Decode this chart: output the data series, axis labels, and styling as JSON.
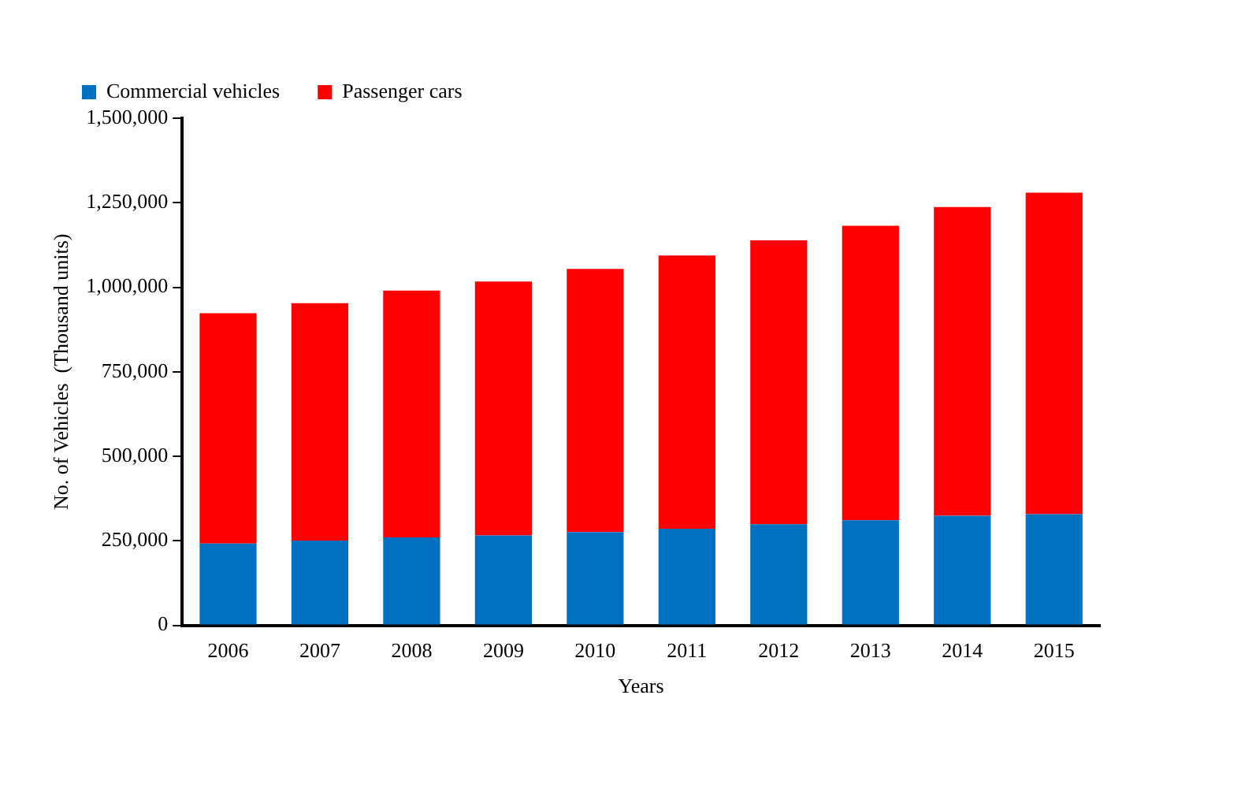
{
  "chart_data": {
    "type": "bar",
    "stacked": true,
    "xlabel": "Years",
    "ylabel": "No. of Vehicles  (Thousand units)",
    "categories": [
      "2006",
      "2007",
      "2008",
      "2009",
      "2010",
      "2011",
      "2012",
      "2013",
      "2014",
      "2015"
    ],
    "series": [
      {
        "name": "Commercial vehicles",
        "color": "#0070c0",
        "values": [
          242000,
          251000,
          260000,
          266000,
          276000,
          286000,
          299000,
          311000,
          324000,
          329000
        ]
      },
      {
        "name": "Passenger cars",
        "color": "#ff0000",
        "values": [
          681000,
          702000,
          730000,
          751000,
          778000,
          808000,
          840000,
          871000,
          913000,
          951000
        ]
      }
    ],
    "ylim": [
      0,
      1500000
    ],
    "yticks": [
      {
        "value": 0,
        "label": "0"
      },
      {
        "value": 250000,
        "label": "250,000"
      },
      {
        "value": 500000,
        "label": "500,000"
      },
      {
        "value": 750000,
        "label": "750,000"
      },
      {
        "value": 1000000,
        "label": "1,000,000"
      },
      {
        "value": 1250000,
        "label": "1,250,000"
      },
      {
        "value": 1500000,
        "label": "1,500,000"
      }
    ],
    "grid": false,
    "legend": "top left"
  }
}
